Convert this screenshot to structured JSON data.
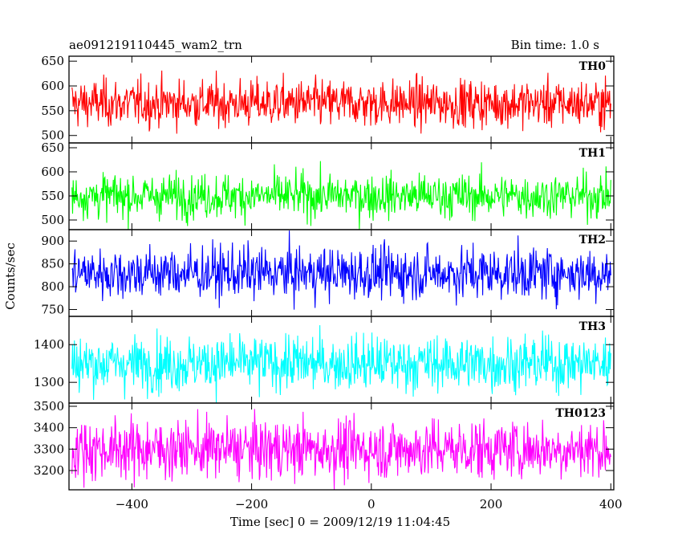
{
  "header": {
    "left": "ae091219110445_wam2_trn",
    "right": "Bin time: 1.0 s"
  },
  "chart_data": {
    "type": "line",
    "title": "ae091219110445_wam2_trn",
    "subtitle": "Bin time: 1.0 s",
    "xlabel": "Time [sec] 0 = 2009/12/19 11:04:45",
    "ylabel": "Counts/sec",
    "xlim": [
      -505,
      405
    ],
    "x_ticks": [
      -400,
      -200,
      0,
      200,
      400
    ],
    "x_tick_labels": [
      "−400",
      "−200",
      "0",
      "200",
      "400"
    ],
    "x_data_range": [
      -500,
      400
    ],
    "grid": false,
    "panels": [
      {
        "name": "TH0",
        "color": "#ff0000",
        "ylim": [
          485,
          660
        ],
        "y_ticks": [
          500,
          550,
          600,
          650
        ],
        "y_tick_labels": [
          "500",
          "550",
          "600",
          "650"
        ],
        "mean": 565,
        "sigma": 24
      },
      {
        "name": "TH1",
        "color": "#00ff00",
        "ylim": [
          480,
          660
        ],
        "y_ticks": [
          500,
          550,
          600,
          650
        ],
        "y_tick_labels": [
          "500",
          "550",
          "600",
          "650"
        ],
        "mean": 550,
        "sigma": 23
      },
      {
        "name": "TH2",
        "color": "#0000ff",
        "ylim": [
          735,
          925
        ],
        "y_ticks": [
          750,
          800,
          850,
          900
        ],
        "y_tick_labels": [
          "750",
          "800",
          "850",
          "900"
        ],
        "mean": 830,
        "sigma": 29
      },
      {
        "name": "TH3",
        "color": "#00ffff",
        "ylim": [
          1245,
          1475
        ],
        "y_ticks": [
          1300,
          1400
        ],
        "y_tick_labels": [
          "1300",
          "1400"
        ],
        "mean": 1350,
        "sigma": 37
      },
      {
        "name": "TH0123",
        "color": "#ff00ff",
        "ylim": [
          3110,
          3515
        ],
        "y_ticks": [
          3200,
          3300,
          3400,
          3500
        ],
        "y_tick_labels": [
          "3200",
          "3300",
          "3400",
          "3500"
        ],
        "mean": 3300,
        "sigma": 70
      }
    ]
  }
}
